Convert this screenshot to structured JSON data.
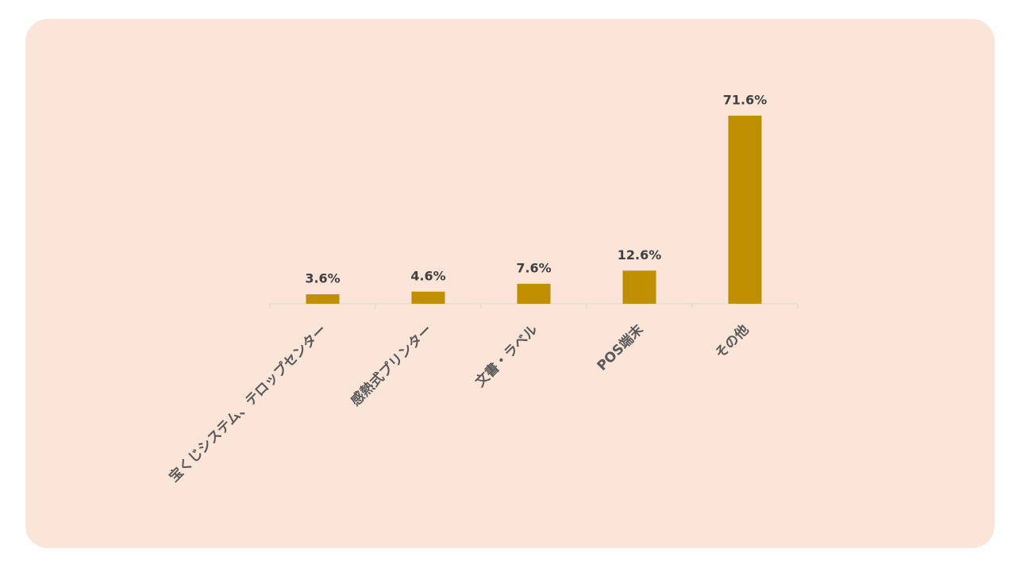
{
  "chart_data": {
    "type": "bar",
    "categories": [
      "宝くじシステム、テロップセンター",
      "感熱式プリンター",
      "文書・ラベル",
      "POS端末",
      "その他"
    ],
    "values": [
      3.6,
      4.6,
      7.6,
      12.6,
      71.6
    ],
    "value_labels": [
      "3.6%",
      "4.6%",
      "7.6%",
      "12.6%",
      "71.6%"
    ],
    "color": "#bf8f00",
    "ylim": [
      0,
      80
    ]
  }
}
